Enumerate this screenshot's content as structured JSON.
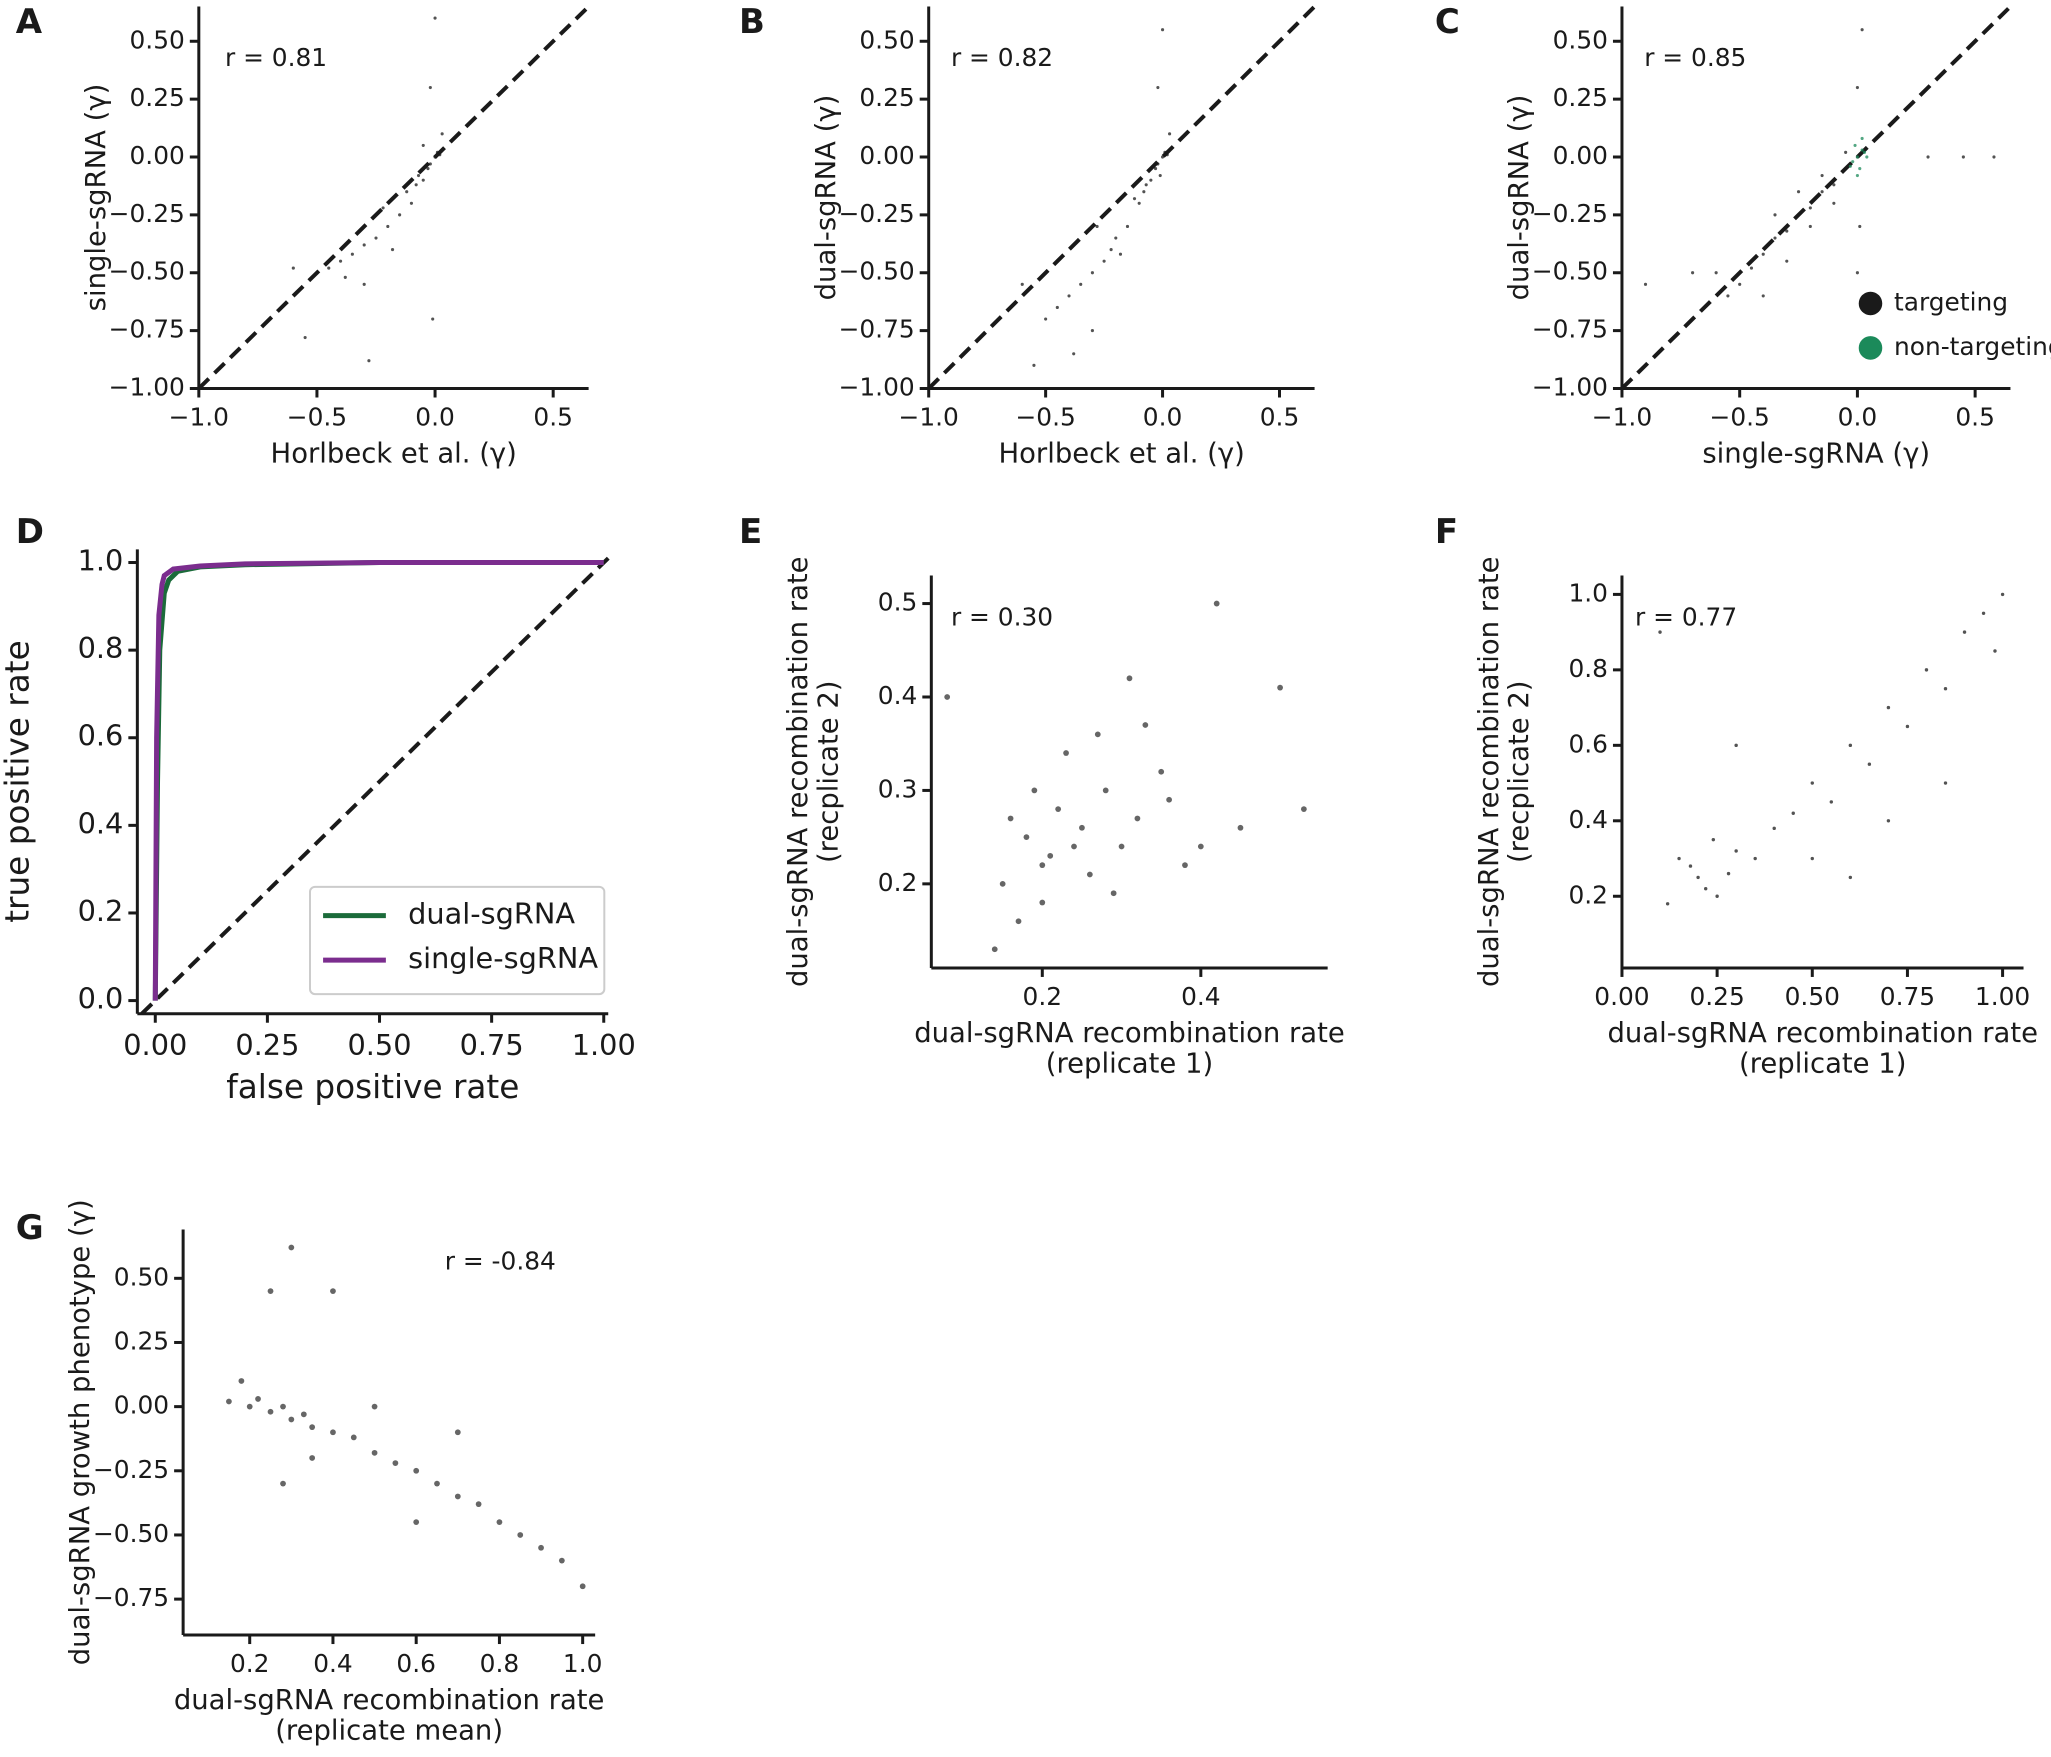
{
  "chart_data": [
    {
      "type": "scatter",
      "panel_label": "A",
      "annotation": "r = 0.81",
      "xlabel": [
        "Horlbeck et al. (γ)"
      ],
      "ylabel": [
        "single-sgRNA (γ)"
      ],
      "diagonal": true,
      "color": "#1a1a1a",
      "xlim": [
        -1.0,
        0.65
      ],
      "ylim": [
        -1.0,
        0.65
      ],
      "xticks": [
        {
          "value": -1.0,
          "label": "−1.0"
        },
        {
          "value": -0.5,
          "label": "−0.5"
        },
        {
          "value": 0,
          "label": "0.0"
        },
        0.5
      ],
      "yticks": [
        {
          "value": -1.0,
          "label": "−1.00"
        },
        {
          "value": -0.75,
          "label": "−0.75"
        },
        {
          "value": -0.5,
          "label": "−0.50"
        },
        {
          "value": -0.25,
          "label": "−0.25"
        },
        {
          "value": 0,
          "label": "0.00"
        },
        0.25,
        {
          "value": 0.5,
          "label": "0.50"
        }
      ],
      "x": [
        0,
        -0.02,
        0.01,
        -0.05,
        -0.03,
        0.02,
        -0.1,
        -0.08,
        -0.15,
        -0.2,
        -0.25,
        -0.3,
        -0.35,
        -0.4,
        -0.45,
        -0.5,
        -0.12,
        -0.05,
        -0.02,
        0.0,
        -0.3,
        -0.22,
        -0.6,
        -0.55,
        -0.28,
        -0.01,
        0.03,
        -0.07,
        -0.18,
        -0.38
      ],
      "values": [
        0,
        -0.03,
        0.02,
        -0.1,
        -0.05,
        0.01,
        -0.2,
        -0.12,
        -0.25,
        -0.3,
        -0.35,
        -0.38,
        -0.42,
        -0.45,
        -0.48,
        -0.5,
        -0.15,
        0.05,
        0.3,
        0.6,
        -0.55,
        -0.22,
        -0.48,
        -0.78,
        -0.88,
        -0.7,
        0.1,
        -0.08,
        -0.4,
        -0.52
      ]
    },
    {
      "type": "scatter",
      "panel_label": "B",
      "annotation": "r = 0.82",
      "xlabel": [
        "Horlbeck et al. (γ)"
      ],
      "ylabel": [
        "dual-sgRNA (γ)"
      ],
      "diagonal": true,
      "color": "#1a1a1a",
      "xlim": [
        -1.0,
        0.65
      ],
      "ylim": [
        -1.0,
        0.65
      ],
      "xticks": [
        {
          "value": -1.0,
          "label": "−1.0"
        },
        {
          "value": -0.5,
          "label": "−0.5"
        },
        {
          "value": 0,
          "label": "0.0"
        },
        0.5
      ],
      "yticks": [
        {
          "value": -1.0,
          "label": "−1.00"
        },
        {
          "value": -0.75,
          "label": "−0.75"
        },
        {
          "value": -0.5,
          "label": "−0.50"
        },
        {
          "value": -0.25,
          "label": "−0.25"
        },
        {
          "value": 0,
          "label": "0.00"
        },
        0.25,
        {
          "value": 0.5,
          "label": "0.50"
        }
      ],
      "x": [
        0,
        -0.02,
        0.01,
        -0.05,
        -0.03,
        0.02,
        -0.1,
        -0.08,
        -0.15,
        -0.2,
        -0.25,
        -0.3,
        -0.35,
        -0.4,
        -0.45,
        -0.5,
        -0.55,
        -0.12,
        -0.02,
        0.0,
        -0.3,
        -0.22,
        -0.6,
        -0.38,
        -0.28,
        -0.01,
        0.03,
        -0.07,
        -0.18,
        -0.45
      ],
      "values": [
        0,
        -0.03,
        0.02,
        -0.1,
        -0.05,
        0.01,
        -0.2,
        -0.15,
        -0.3,
        -0.35,
        -0.45,
        -0.5,
        -0.55,
        -0.6,
        -0.65,
        -0.7,
        -0.9,
        -0.18,
        0.3,
        0.55,
        -0.75,
        -0.4,
        -0.55,
        -0.85,
        -0.3,
        -0.08,
        0.1,
        -0.12,
        -0.42,
        -0.45
      ]
    },
    {
      "type": "scatter",
      "panel_label": "C",
      "annotation": "r = 0.85",
      "xlabel": [
        "single-sgRNA (γ)"
      ],
      "ylabel": [
        "dual-sgRNA (γ)"
      ],
      "diagonal": true,
      "legend": "lower right",
      "xlim": [
        -1.0,
        0.65
      ],
      "ylim": [
        -1.0,
        0.65
      ],
      "xticks": [
        {
          "value": -1.0,
          "label": "−1.0"
        },
        {
          "value": -0.5,
          "label": "−0.5"
        },
        {
          "value": 0,
          "label": "0.0"
        },
        0.5
      ],
      "yticks": [
        {
          "value": -1.0,
          "label": "−1.00"
        },
        {
          "value": -0.75,
          "label": "−0.75"
        },
        {
          "value": -0.5,
          "label": "−0.50"
        },
        {
          "value": -0.25,
          "label": "−0.25"
        },
        {
          "value": 0,
          "label": "0.00"
        },
        0.25,
        {
          "value": 0.5,
          "label": "0.50"
        }
      ],
      "series": [
        {
          "name": "targeting",
          "color": "#1a1a1a",
          "x": [
            0,
            -0.05,
            -0.1,
            -0.15,
            -0.2,
            -0.25,
            -0.3,
            -0.35,
            -0.4,
            -0.45,
            -0.5,
            -0.55,
            -0.6,
            -0.1,
            -0.2,
            -0.3,
            -0.4,
            0.0,
            0.02,
            0.0,
            -0.7,
            -0.9,
            0.3,
            0.45,
            0.58,
            -0.05,
            -0.25,
            -0.35,
            -0.15,
            0.01
          ],
          "values": [
            0,
            -0.05,
            -0.12,
            -0.15,
            -0.22,
            -0.25,
            -0.32,
            -0.35,
            -0.42,
            -0.48,
            -0.55,
            -0.6,
            -0.5,
            -0.2,
            -0.3,
            -0.45,
            -0.6,
            0.3,
            0.55,
            -0.5,
            -0.5,
            -0.55,
            0.0,
            0.0,
            0.0,
            0.02,
            -0.15,
            -0.25,
            -0.08,
            -0.3
          ]
        },
        {
          "name": "non-targeting",
          "color": "#1b8a5a",
          "x": [
            0,
            0.02,
            -0.02,
            0.01,
            0.03,
            -0.01,
            0.0,
            0.04,
            -0.03,
            0.02
          ],
          "values": [
            0,
            0.03,
            -0.02,
            -0.05,
            0.02,
            0.05,
            -0.08,
            0.0,
            -0.04,
            0.08
          ]
        }
      ]
    },
    {
      "type": "line",
      "panel_label": "D",
      "xlabel": [
        "false positive rate"
      ],
      "ylabel": [
        "true positive rate"
      ],
      "diagonal": true,
      "legend": "lower right",
      "xlim": [
        -0.04,
        1.01
      ],
      "ylim": [
        -0.03,
        1.03
      ],
      "xticks": [
        {
          "value": 0,
          "label": "0.00"
        },
        0.25,
        {
          "value": 0.5,
          "label": "0.50"
        },
        0.75,
        {
          "value": 1,
          "label": "1.00"
        }
      ],
      "yticks": [
        {
          "value": 0,
          "label": "0.0"
        },
        0.2,
        0.4,
        0.6,
        0.8,
        {
          "value": 1,
          "label": "1.0"
        }
      ],
      "series": [
        {
          "name": "dual-sgRNA",
          "color": "#1b6b3a",
          "x": [
            0,
            0.005,
            0.01,
            0.02,
            0.03,
            0.05,
            0.1,
            0.2,
            0.5,
            1
          ],
          "values": [
            0,
            0.5,
            0.8,
            0.93,
            0.96,
            0.98,
            0.99,
            0.995,
            1,
            1
          ]
        },
        {
          "name": "single-sgRNA",
          "color": "#7b2d8e",
          "x": [
            0,
            0.003,
            0.008,
            0.015,
            0.02,
            0.04,
            0.1,
            0.2,
            0.5,
            1
          ],
          "values": [
            0,
            0.6,
            0.88,
            0.95,
            0.97,
            0.985,
            0.992,
            0.997,
            1,
            1
          ]
        }
      ]
    },
    {
      "type": "scatter",
      "panel_label": "E",
      "annotation": "r = 0.30",
      "xlabel": [
        "dual-sgRNA recombination rate",
        "(replicate 1)"
      ],
      "ylabel": [
        "dual-sgRNA recombination rate",
        "(recplicate 2)"
      ],
      "color": "#333333",
      "xlim": [
        0.06,
        0.56
      ],
      "ylim": [
        0.11,
        0.53
      ],
      "xticks": [
        0.2,
        0.4
      ],
      "yticks": [
        0.2,
        0.3,
        0.4,
        0.5
      ],
      "x": [
        0.15,
        0.18,
        0.2,
        0.22,
        0.25,
        0.28,
        0.3,
        0.32,
        0.35,
        0.2,
        0.23,
        0.26,
        0.19,
        0.17,
        0.24,
        0.27,
        0.31,
        0.36,
        0.4,
        0.45,
        0.5,
        0.08,
        0.42,
        0.53,
        0.14,
        0.21,
        0.29,
        0.33,
        0.38,
        0.16
      ],
      "values": [
        0.2,
        0.25,
        0.22,
        0.28,
        0.26,
        0.3,
        0.24,
        0.27,
        0.32,
        0.18,
        0.34,
        0.21,
        0.3,
        0.16,
        0.24,
        0.36,
        0.42,
        0.29,
        0.24,
        0.26,
        0.41,
        0.4,
        0.5,
        0.28,
        0.13,
        0.23,
        0.19,
        0.37,
        0.22,
        0.27
      ]
    },
    {
      "type": "scatter",
      "panel_label": "F",
      "annotation": "r = 0.77",
      "xlabel": [
        "dual-sgRNA recombination rate",
        "(replicate 1)"
      ],
      "ylabel": [
        "dual-sgRNA recombination rate",
        "(recplicate 2)"
      ],
      "color": "#1a1a1a",
      "xlim": [
        0.0,
        1.055
      ],
      "ylim": [
        0.01,
        1.05
      ],
      "xticks": [
        {
          "value": 0,
          "label": "0.00"
        },
        0.25,
        {
          "value": 0.5,
          "label": "0.50"
        },
        0.75,
        {
          "value": 1,
          "label": "1.00"
        }
      ],
      "yticks": [
        0.2,
        0.4,
        0.6,
        0.8,
        {
          "value": 1,
          "label": "1.0"
        }
      ],
      "x": [
        0.2,
        0.22,
        0.18,
        0.25,
        0.15,
        0.28,
        0.3,
        0.12,
        0.24,
        0.35,
        0.4,
        0.45,
        0.5,
        0.55,
        0.6,
        0.65,
        0.7,
        0.75,
        0.8,
        0.85,
        0.9,
        0.95,
        1.0,
        0.98,
        0.3,
        0.5,
        0.7,
        0.1,
        0.6,
        0.85
      ],
      "values": [
        0.25,
        0.22,
        0.28,
        0.2,
        0.3,
        0.26,
        0.32,
        0.18,
        0.35,
        0.3,
        0.38,
        0.42,
        0.5,
        0.45,
        0.6,
        0.55,
        0.7,
        0.65,
        0.8,
        0.75,
        0.9,
        0.95,
        1.0,
        0.85,
        0.6,
        0.3,
        0.4,
        0.9,
        0.25,
        0.5
      ]
    },
    {
      "type": "scatter",
      "panel_label": "G",
      "annotation": "r = -0.84",
      "xlabel": [
        "dual-sgRNA recombination rate",
        "(replicate mean)"
      ],
      "ylabel": [
        "dual-sgRNA growth phenotype (γ)"
      ],
      "color": "#333333",
      "xlim": [
        0.04,
        1.03
      ],
      "ylim": [
        -0.89,
        0.69
      ],
      "xticks": [
        0.2,
        0.4,
        0.6,
        0.8,
        {
          "value": 1,
          "label": "1.0"
        }
      ],
      "yticks": [
        {
          "value": -0.75,
          "label": "−0.75"
        },
        {
          "value": -0.5,
          "label": "−0.50"
        },
        {
          "value": -0.25,
          "label": "−0.25"
        },
        {
          "value": 0,
          "label": "0.00"
        },
        0.25,
        {
          "value": 0.5,
          "label": "0.50"
        }
      ],
      "x": [
        0.15,
        0.2,
        0.22,
        0.25,
        0.28,
        0.3,
        0.33,
        0.35,
        0.4,
        0.45,
        0.5,
        0.55,
        0.6,
        0.65,
        0.7,
        0.75,
        0.8,
        0.85,
        0.9,
        0.95,
        1.0,
        0.3,
        0.25,
        0.4,
        0.28,
        0.18,
        0.5,
        0.7,
        0.35,
        0.6
      ],
      "values": [
        0.02,
        0.0,
        0.03,
        -0.02,
        0.0,
        -0.05,
        -0.03,
        -0.08,
        -0.1,
        -0.12,
        -0.18,
        -0.22,
        -0.25,
        -0.3,
        -0.35,
        -0.38,
        -0.45,
        -0.5,
        -0.55,
        -0.6,
        -0.7,
        0.62,
        0.45,
        0.45,
        -0.3,
        0.1,
        0.0,
        -0.1,
        -0.2,
        -0.45
      ]
    }
  ]
}
